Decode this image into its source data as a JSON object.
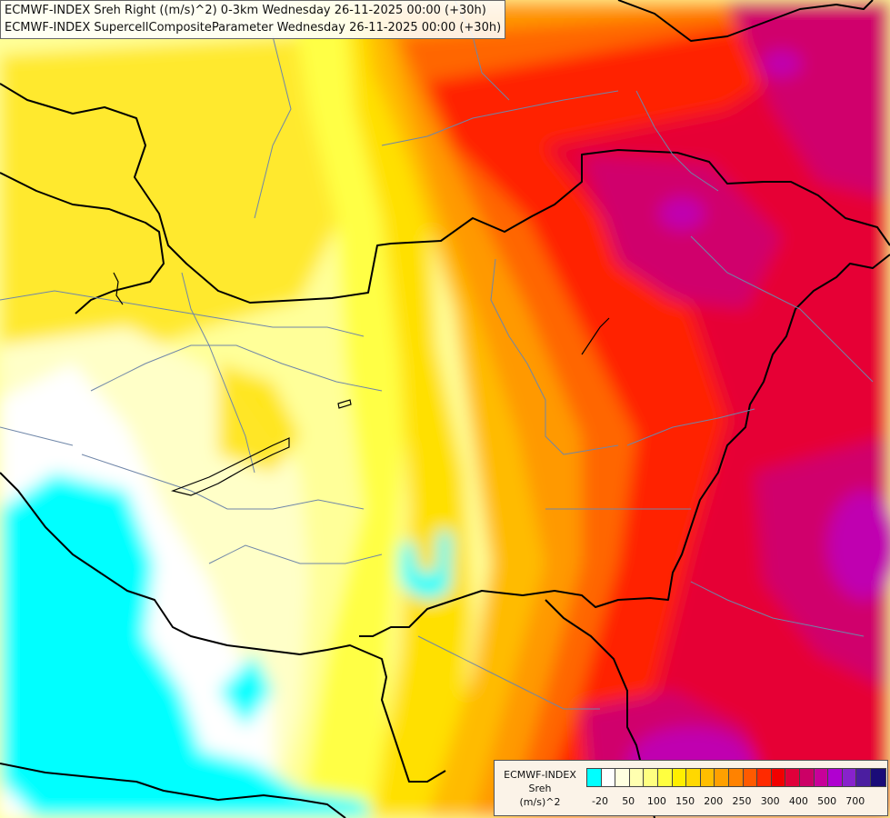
{
  "titles": {
    "line1": "ECMWF-INDEX Sreh Right ((m/s)^2) 0-3km Wednesday 26-11-2025 00:00 (+30h)",
    "line2": "ECMWF-INDEX SupercellCompositeParameter Wednesday 26-11-2025 00:00 (+30h)"
  },
  "legend": {
    "line1": "ECMWF-INDEX",
    "line2": "Sreh",
    "line3": "(m/s)^2",
    "colors": [
      "#00ffff",
      "#ffffff",
      "#ffffe0",
      "#ffffb0",
      "#ffff80",
      "#ffff40",
      "#ffef00",
      "#ffd800",
      "#ffbe00",
      "#ffa000",
      "#ff8200",
      "#ff5a00",
      "#ff2a00",
      "#f20000",
      "#e0003a",
      "#cc0066",
      "#c80099",
      "#b000d0",
      "#8822cc",
      "#4b1ea0",
      "#1a0c78"
    ],
    "ticks": [
      "-20",
      "50",
      "100",
      "150",
      "200",
      "250",
      "300",
      "400",
      "500",
      "700"
    ]
  },
  "map_colors": {
    "cyan": "#00ffff",
    "white": "#ffffff",
    "pale_yellow": "#ffffc8",
    "light_yellow": "#ffff99",
    "yellow": "#ffff44",
    "gold": "#ffe000",
    "amber": "#ffbb00",
    "orange": "#ff9900",
    "dark_orange": "#ff6600",
    "red": "#ff2200",
    "crimson": "#e60036",
    "magenta": "#d0006c",
    "purple": "#c000b0"
  }
}
